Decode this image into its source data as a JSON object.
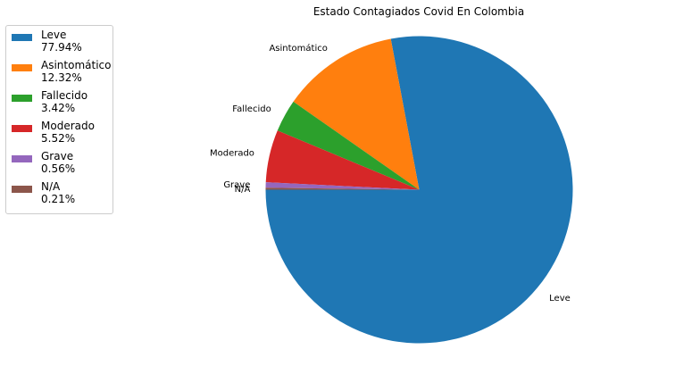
{
  "chart_data": {
    "type": "pie",
    "title": "Estado Contagiados Covid En Colombia",
    "slices": [
      {
        "label": "Leve",
        "value": 77.94,
        "legend_pct": "77.94%",
        "color": "#1f77b4"
      },
      {
        "label": "Asintomático",
        "value": 12.32,
        "legend_pct": "12.32%",
        "color": "#ff7f0e"
      },
      {
        "label": "Fallecido",
        "value": 3.42,
        "legend_pct": "3.42%",
        "color": "#2ca02c"
      },
      {
        "label": "Moderado",
        "value": 5.52,
        "legend_pct": "5.52%",
        "color": "#d62728"
      },
      {
        "label": "Grave",
        "value": 0.56,
        "legend_pct": "0.56%",
        "color": "#9467bd"
      },
      {
        "label": "N/A",
        "value": 0.21,
        "legend_pct": "0.21%",
        "color": "#8c564b"
      }
    ],
    "legend_position": "upper-left"
  }
}
